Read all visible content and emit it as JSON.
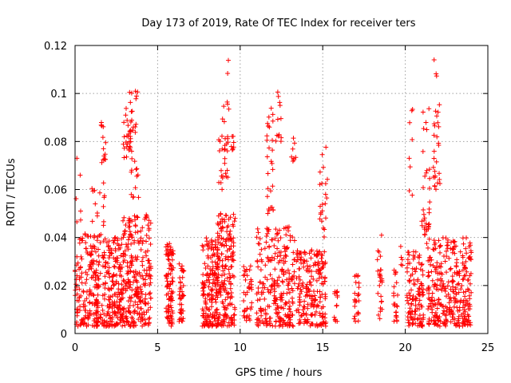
{
  "chart_data": {
    "type": "scatter",
    "title": "Day 173 of 2019, Rate Of TEC Index for receiver ters",
    "xlabel": "GPS time / hours",
    "ylabel": "ROTI / TECUs",
    "xlim": [
      0,
      25
    ],
    "ylim": [
      0,
      0.12
    ],
    "xticks": [
      0,
      5,
      10,
      15,
      20,
      25
    ],
    "xtick_labels": [
      "0",
      "5",
      "10",
      "15",
      "20",
      "25"
    ],
    "yticks": [
      0,
      0.02,
      0.04,
      0.06,
      0.08,
      0.1,
      0.12
    ],
    "ytick_labels": [
      "0",
      "0.02",
      "0.04",
      "0.06",
      "0.08",
      "0.1",
      "0.12"
    ],
    "grid": true,
    "marker": "plus",
    "color": "#ff0000",
    "clusters": [
      {
        "x": [
          0.0,
          2.0
        ],
        "y": [
          0.003,
          0.042
        ],
        "n": 240
      },
      {
        "x": [
          0.0,
          0.35
        ],
        "y": [
          0.045,
          0.078
        ],
        "n": 6
      },
      {
        "x": [
          1.0,
          1.8
        ],
        "y": [
          0.045,
          0.065
        ],
        "n": 14
      },
      {
        "x": [
          1.5,
          1.9
        ],
        "y": [
          0.07,
          0.088
        ],
        "n": 14
      },
      {
        "x": [
          2.0,
          2.9
        ],
        "y": [
          0.003,
          0.04
        ],
        "n": 150
      },
      {
        "x": [
          2.9,
          4.6
        ],
        "y": [
          0.003,
          0.05
        ],
        "n": 260
      },
      {
        "x": [
          2.9,
          3.4
        ],
        "y": [
          0.072,
          0.095
        ],
        "n": 26
      },
      {
        "x": [
          3.3,
          3.8
        ],
        "y": [
          0.082,
          0.101
        ],
        "n": 18
      },
      {
        "x": [
          3.4,
          3.9
        ],
        "y": [
          0.055,
          0.08
        ],
        "n": 14
      },
      {
        "x": [
          5.5,
          5.95
        ],
        "y": [
          0.003,
          0.038
        ],
        "n": 90
      },
      {
        "x": [
          6.3,
          6.6
        ],
        "y": [
          0.005,
          0.03
        ],
        "n": 40
      },
      {
        "x": [
          7.7,
          8.7
        ],
        "y": [
          0.003,
          0.04
        ],
        "n": 170
      },
      {
        "x": [
          8.6,
          9.7
        ],
        "y": [
          0.003,
          0.05
        ],
        "n": 190
      },
      {
        "x": [
          8.7,
          9.3
        ],
        "y": [
          0.06,
          0.09
        ],
        "n": 22
      },
      {
        "x": [
          9.0,
          9.7
        ],
        "y": [
          0.075,
          0.097
        ],
        "n": 18
      },
      {
        "x": [
          9.2,
          9.3
        ],
        "y": [
          0.105,
          0.118
        ],
        "n": 2
      },
      {
        "x": [
          10.2,
          10.7
        ],
        "y": [
          0.005,
          0.03
        ],
        "n": 40
      },
      {
        "x": [
          11.0,
          13.3
        ],
        "y": [
          0.003,
          0.045
        ],
        "n": 260
      },
      {
        "x": [
          11.6,
          12.0
        ],
        "y": [
          0.05,
          0.097
        ],
        "n": 28
      },
      {
        "x": [
          12.1,
          12.5
        ],
        "y": [
          0.08,
          0.102
        ],
        "n": 12
      },
      {
        "x": [
          13.1,
          13.4
        ],
        "y": [
          0.07,
          0.083
        ],
        "n": 8
      },
      {
        "x": [
          13.4,
          15.2
        ],
        "y": [
          0.003,
          0.035
        ],
        "n": 200
      },
      {
        "x": [
          14.8,
          15.3
        ],
        "y": [
          0.04,
          0.078
        ],
        "n": 22
      },
      {
        "x": [
          15.7,
          15.9
        ],
        "y": [
          0.005,
          0.018
        ],
        "n": 14
      },
      {
        "x": [
          16.9,
          17.2
        ],
        "y": [
          0.005,
          0.025
        ],
        "n": 24
      },
      {
        "x": [
          18.3,
          18.6
        ],
        "y": [
          0.005,
          0.041
        ],
        "n": 26
      },
      {
        "x": [
          19.3,
          19.6
        ],
        "y": [
          0.005,
          0.027
        ],
        "n": 22
      },
      {
        "x": [
          19.6,
          19.9
        ],
        "y": [
          0.028,
          0.045
        ],
        "n": 5
      },
      {
        "x": [
          20.1,
          21.1
        ],
        "y": [
          0.003,
          0.035
        ],
        "n": 120
      },
      {
        "x": [
          20.2,
          20.5
        ],
        "y": [
          0.05,
          0.099
        ],
        "n": 8
      },
      {
        "x": [
          21.0,
          21.5
        ],
        "y": [
          0.04,
          0.096
        ],
        "n": 34
      },
      {
        "x": [
          21.3,
          24.0
        ],
        "y": [
          0.003,
          0.04
        ],
        "n": 320
      },
      {
        "x": [
          21.7,
          22.1
        ],
        "y": [
          0.06,
          0.116
        ],
        "n": 30
      }
    ]
  }
}
